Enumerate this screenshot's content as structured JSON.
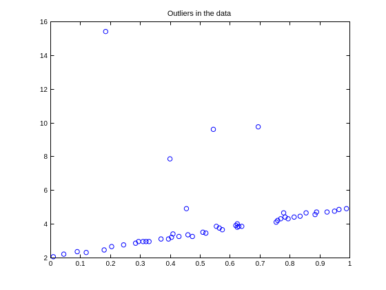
{
  "chart_data": {
    "type": "scatter",
    "title": "Outliers in the data",
    "xlabel": "",
    "ylabel": "",
    "xlim": [
      0,
      1
    ],
    "ylim": [
      2,
      16
    ],
    "xticks": [
      0,
      0.1,
      0.2,
      0.3,
      0.4,
      0.5,
      0.6,
      0.7,
      0.8,
      0.9,
      1
    ],
    "xtick_labels": [
      "0",
      "0.1",
      "0.2",
      "0.3",
      "0.4",
      "0.5",
      "0.6",
      "0.7",
      "0.8",
      "0.9",
      "1"
    ],
    "yticks": [
      2,
      4,
      6,
      8,
      10,
      12,
      14,
      16
    ],
    "ytick_labels": [
      "2",
      "4",
      "6",
      "8",
      "10",
      "12",
      "14",
      "16"
    ],
    "grid": false,
    "marker": "circle-open",
    "marker_color": "#0000ff",
    "series": [
      {
        "points": [
          [
            0.01,
            2.05
          ],
          [
            0.045,
            2.2
          ],
          [
            0.09,
            2.35
          ],
          [
            0.12,
            2.3
          ],
          [
            0.18,
            2.45
          ],
          [
            0.185,
            15.4
          ],
          [
            0.205,
            2.65
          ],
          [
            0.245,
            2.75
          ],
          [
            0.285,
            2.85
          ],
          [
            0.295,
            2.95
          ],
          [
            0.31,
            2.95
          ],
          [
            0.32,
            2.95
          ],
          [
            0.33,
            2.95
          ],
          [
            0.37,
            3.1
          ],
          [
            0.395,
            3.1
          ],
          [
            0.4,
            7.85
          ],
          [
            0.405,
            3.2
          ],
          [
            0.41,
            3.4
          ],
          [
            0.43,
            3.25
          ],
          [
            0.455,
            4.9
          ],
          [
            0.46,
            3.35
          ],
          [
            0.475,
            3.25
          ],
          [
            0.51,
            3.5
          ],
          [
            0.52,
            3.45
          ],
          [
            0.545,
            9.6
          ],
          [
            0.555,
            3.85
          ],
          [
            0.565,
            3.75
          ],
          [
            0.575,
            3.65
          ],
          [
            0.62,
            3.9
          ],
          [
            0.625,
            3.8
          ],
          [
            0.625,
            4.0
          ],
          [
            0.63,
            3.85
          ],
          [
            0.64,
            3.85
          ],
          [
            0.695,
            9.75
          ],
          [
            0.755,
            4.1
          ],
          [
            0.76,
            4.2
          ],
          [
            0.77,
            4.3
          ],
          [
            0.78,
            4.65
          ],
          [
            0.785,
            4.4
          ],
          [
            0.795,
            4.3
          ],
          [
            0.815,
            4.4
          ],
          [
            0.835,
            4.45
          ],
          [
            0.855,
            4.65
          ],
          [
            0.885,
            4.55
          ],
          [
            0.89,
            4.7
          ],
          [
            0.925,
            4.7
          ],
          [
            0.95,
            4.75
          ],
          [
            0.965,
            4.85
          ],
          [
            0.99,
            4.9
          ]
        ]
      }
    ]
  }
}
